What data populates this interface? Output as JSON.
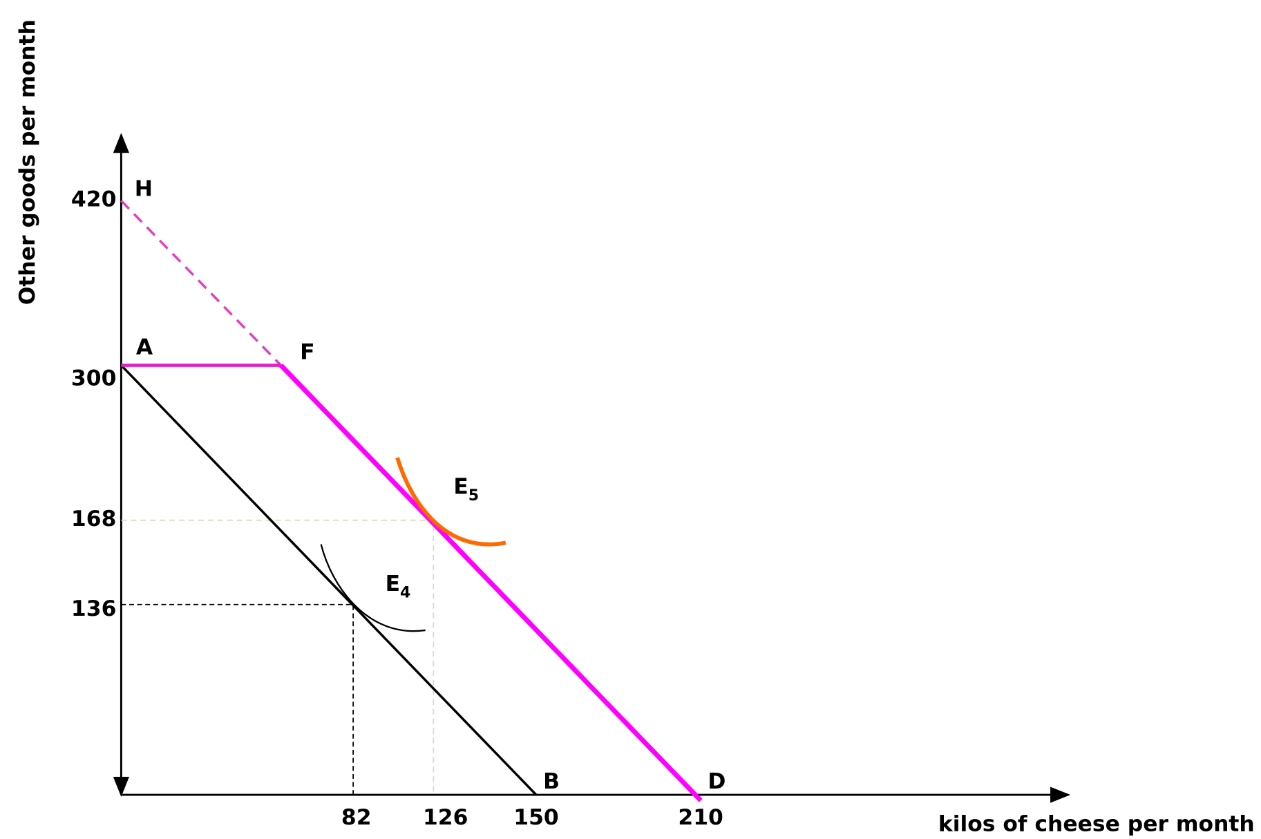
{
  "axes": {
    "y_label": "Other goods per month",
    "x_label": "kilos of cheese per month",
    "y_ticks": [
      420,
      300,
      168,
      136
    ],
    "x_ticks": [
      82,
      126,
      150,
      210
    ]
  },
  "points": [
    {
      "label": "H"
    },
    {
      "label": "A"
    },
    {
      "label": "F"
    },
    {
      "label": "B"
    },
    {
      "label": "D"
    }
  ],
  "curves": [
    {
      "label": "E",
      "subscript": "5"
    },
    {
      "label": "E",
      "subscript": "4"
    }
  ]
}
